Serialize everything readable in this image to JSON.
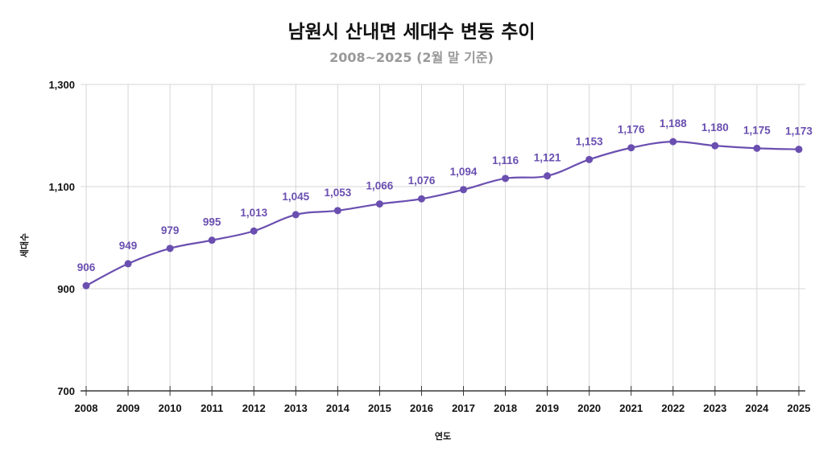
{
  "chart_data": {
    "type": "line",
    "title": "남원시 산내면 세대수 변동 추이",
    "subtitle": "2008~2025 (2월 말 기준)",
    "xlabel": "연도",
    "ylabel": "세대수",
    "categories": [
      "2008",
      "2009",
      "2010",
      "2011",
      "2012",
      "2013",
      "2014",
      "2015",
      "2016",
      "2017",
      "2018",
      "2019",
      "2020",
      "2021",
      "2022",
      "2023",
      "2024",
      "2025"
    ],
    "series": [
      {
        "name": "세대수",
        "values": [
          906,
          949,
          979,
          995,
          1013,
          1045,
          1053,
          1066,
          1076,
          1094,
          1116,
          1121,
          1153,
          1176,
          1188,
          1180,
          1175,
          1173
        ],
        "color": "#6a4fb0"
      }
    ],
    "ylim": [
      700,
      1300
    ],
    "yticks": [
      700,
      900,
      1100,
      1300
    ],
    "ytick_labels": [
      "700",
      "900",
      "1,100",
      "1,300"
    ],
    "grid": true,
    "data_labels": true,
    "legend": "none"
  }
}
